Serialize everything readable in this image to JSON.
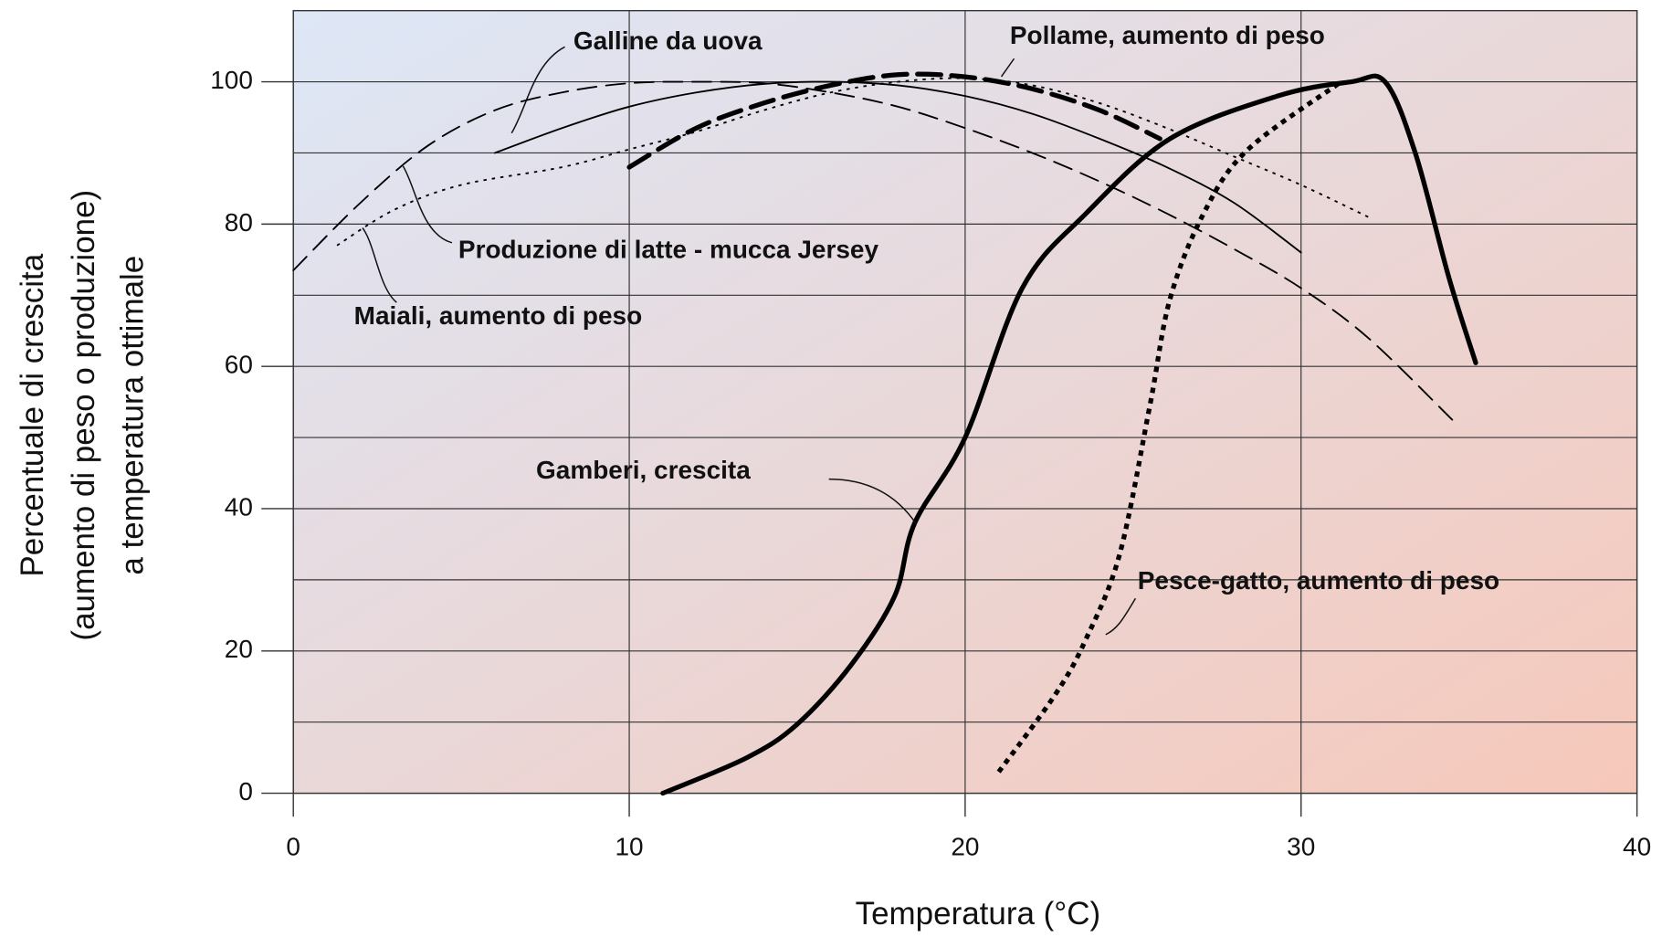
{
  "chart_data": {
    "type": "line",
    "xlabel": "Temperatura (°C)",
    "ylabel": [
      "Percentuale di crescita",
      "(aumento di peso o produzione)",
      "a temperatura ottimale"
    ],
    "xlim": [
      0,
      40
    ],
    "xticks": [
      0,
      10,
      20,
      30,
      40
    ],
    "ylim": [
      0,
      110
    ],
    "yticks": [
      0,
      20,
      40,
      60,
      80,
      100
    ],
    "yminor_grid": [
      10,
      30,
      50,
      70,
      90
    ],
    "grid": true,
    "series": [
      {
        "name": "Galline da uova",
        "color": "#000000",
        "style": "solid",
        "weight": "thin",
        "x": [
          6,
          8,
          10,
          12,
          14,
          16,
          18,
          20,
          22,
          24,
          26,
          28,
          30
        ],
        "values": [
          90,
          93.5,
          96.5,
          98.5,
          99.7,
          100,
          99.5,
          98,
          95.5,
          92,
          88,
          83,
          76
        ]
      },
      {
        "name": "Produzione di latte - mucca Jersey",
        "color": "#000000",
        "style": "dashed",
        "weight": "thin",
        "x": [
          0,
          2,
          4,
          6,
          8,
          10,
          12,
          14,
          16,
          18,
          20,
          22,
          24,
          26,
          28,
          30,
          32,
          34.5
        ],
        "values": [
          73.5,
          83,
          91,
          96,
          98.5,
          99.8,
          100,
          99.8,
          98.5,
          96.5,
          93.5,
          90,
          86,
          81.5,
          76.5,
          71,
          64,
          52.5
        ]
      },
      {
        "name": "Maiali, aumento di peso",
        "color": "#000000",
        "style": "dotted",
        "weight": "thin",
        "x": [
          1.3,
          3,
          5,
          8,
          10,
          12,
          14,
          16,
          18,
          20,
          22,
          24,
          26,
          28,
          30,
          32
        ],
        "values": [
          77,
          82,
          85.5,
          88,
          90.5,
          93,
          96,
          98.5,
          100,
          100.5,
          99.5,
          97,
          93.5,
          89.5,
          85.5,
          81
        ]
      },
      {
        "name": "Pollame, aumento di peso",
        "color": "#000000",
        "style": "dashed",
        "weight": "thick",
        "x": [
          10,
          12,
          14,
          16,
          18,
          20,
          22,
          24,
          25.8
        ],
        "values": [
          88,
          93.5,
          97,
          99.5,
          101,
          100.7,
          99,
          96,
          92
        ]
      },
      {
        "name": "Gamberi, crescita",
        "color": "#000000",
        "style": "solid",
        "weight": "thick",
        "x": [
          11,
          13.5,
          15,
          16.6,
          17.9,
          18.5,
          20,
          21.7,
          23.6,
          26.1,
          29.3,
          31.5,
          32.5,
          33.4,
          34.4,
          35.2
        ],
        "values": [
          0,
          5,
          9.7,
          18,
          27.7,
          38,
          50,
          71,
          81.5,
          92,
          98,
          100,
          100,
          90,
          72.5,
          60.5
        ]
      },
      {
        "name": "Pesce-gatto, aumento di peso",
        "color": "#000000",
        "style": "dotted",
        "weight": "thick",
        "x": [
          21,
          22.7,
          23.6,
          24.6,
          25.5,
          26.1,
          27.1,
          28.4,
          31.1
        ],
        "values": [
          3,
          14,
          21.7,
          33.6,
          54.5,
          69.5,
          81.5,
          90.4,
          99.7
        ]
      }
    ]
  }
}
